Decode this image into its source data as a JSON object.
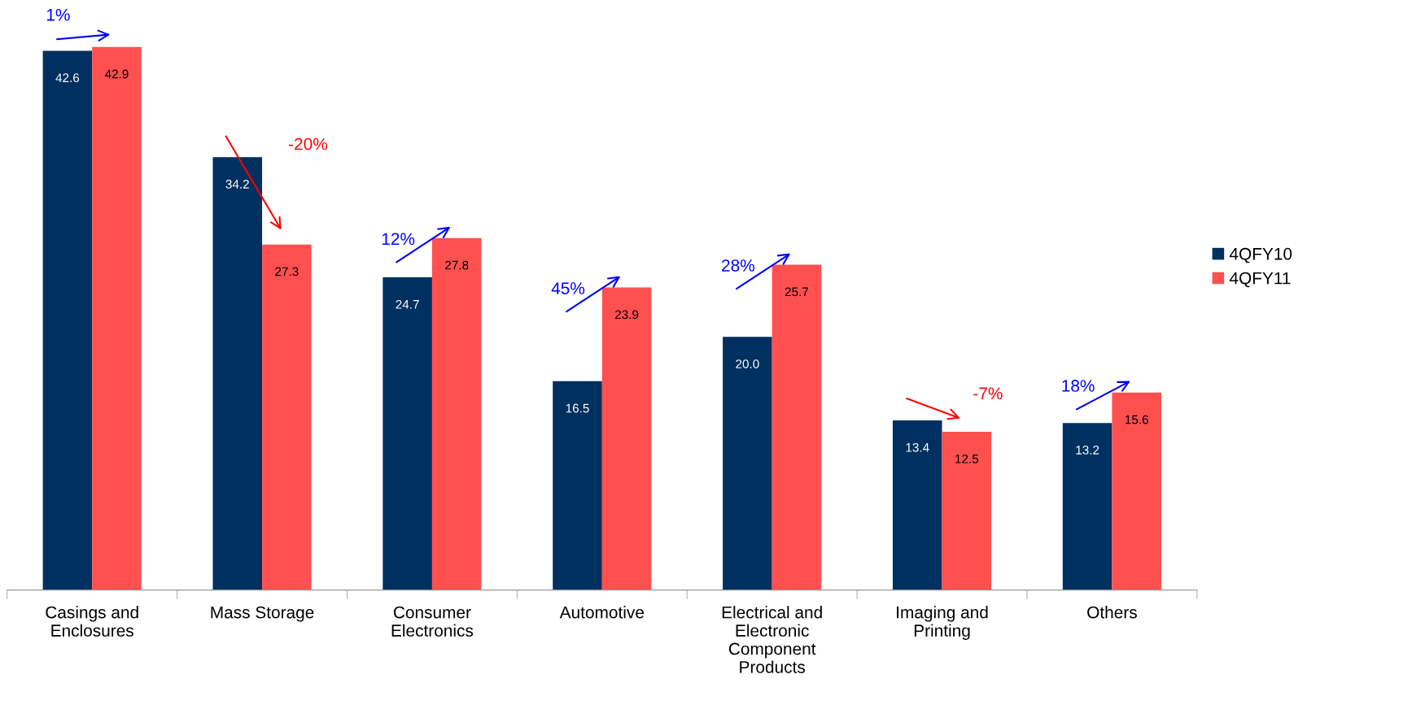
{
  "chart_data": {
    "type": "bar",
    "categories": [
      "Casings and\nEnclosures",
      "Mass Storage",
      "Consumer\nElectronics",
      "Automotive",
      "Electrical and\nElectronic\nComponent\nProducts",
      "Imaging and\nPrinting",
      "Others"
    ],
    "series": [
      {
        "name": "4QFY10",
        "color": "#00305f",
        "values": [
          42.6,
          34.2,
          24.7,
          16.5,
          20.0,
          13.4,
          13.2
        ],
        "value_labels": [
          "42.6",
          "34.2",
          "24.7",
          "16.5",
          "20.0",
          "13.4",
          "13.2"
        ]
      },
      {
        "name": "4QFY11",
        "color": "#ff5050",
        "values": [
          42.9,
          27.3,
          27.8,
          23.9,
          25.7,
          12.5,
          15.6
        ],
        "value_labels": [
          "42.9",
          "27.3",
          "27.8",
          "23.9",
          "25.7",
          "12.5",
          "15.6"
        ]
      }
    ],
    "tick_labels": "x",
    "legend": "right",
    "grid": false,
    "annotations": [
      "1%",
      "-20%",
      "12%",
      "45%",
      "28%",
      "-7%",
      "18%"
    ]
  }
}
